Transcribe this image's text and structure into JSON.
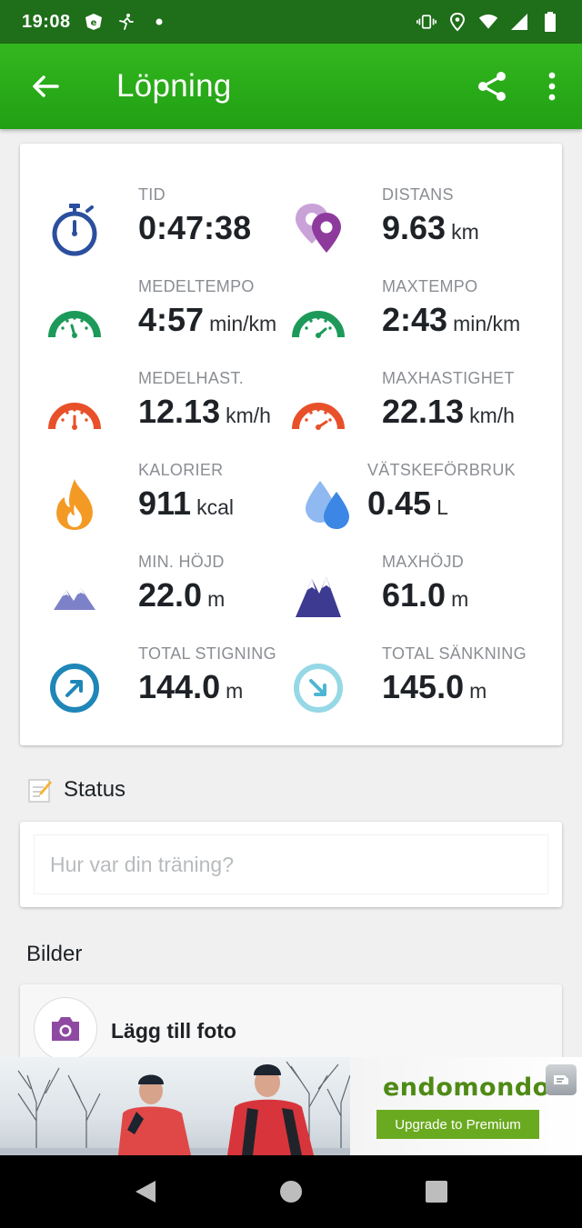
{
  "status_bar": {
    "time": "19:08"
  },
  "app_bar": {
    "title": "Löpning",
    "back_icon": "arrow-left-icon",
    "share_icon": "share-icon",
    "menu_icon": "more-vert-icon"
  },
  "stats": [
    {
      "label": "TID",
      "value": "0:47:38",
      "unit": "",
      "icon": "stopwatch-icon"
    },
    {
      "label": "DISTANS",
      "value": "9.63",
      "unit": "km",
      "icon": "map-pins-icon"
    },
    {
      "label": "MEDELTEMPO",
      "value": "4:57",
      "unit": "min/km",
      "icon": "speedometer-green-icon"
    },
    {
      "label": "MAXTEMPO",
      "value": "2:43",
      "unit": "min/km",
      "icon": "speedometer-green-max-icon"
    },
    {
      "label": "MEDELHAST.",
      "value": "12.13",
      "unit": "km/h",
      "icon": "speedometer-red-icon"
    },
    {
      "label": "MAXHASTIGHET",
      "value": "22.13",
      "unit": "km/h",
      "icon": "speedometer-red-max-icon"
    },
    {
      "label": "KALORIER",
      "value": "911",
      "unit": "kcal",
      "icon": "flame-icon"
    },
    {
      "label": "VÄTSKEFÖRBRUK",
      "value": "0.45",
      "unit": "L",
      "icon": "water-drops-icon"
    },
    {
      "label": "MIN. HÖJD",
      "value": "22.0",
      "unit": "m",
      "icon": "mountain-low-icon"
    },
    {
      "label": "MAXHÖJD",
      "value": "61.0",
      "unit": "m",
      "icon": "mountain-high-icon"
    },
    {
      "label": "TOTAL STIGNING",
      "value": "144.0",
      "unit": "m",
      "icon": "ascent-icon"
    },
    {
      "label": "TOTAL SÄNKNING",
      "value": "145.0",
      "unit": "m",
      "icon": "descent-icon"
    }
  ],
  "status_section": {
    "heading": "Status",
    "placeholder": "Hur var din träning?"
  },
  "photos_section": {
    "heading": "Bilder",
    "add_label": "Lägg till foto"
  },
  "ad": {
    "logo": "endomondo",
    "button": "Upgrade to Premium"
  },
  "colors": {
    "app_bar": "#2aa81a",
    "status_bar": "#1f6e1a",
    "green_icon": "#1f9a5a",
    "red_icon": "#e8502a",
    "purple_icon": "#9b59b6",
    "blue_icon": "#2b5aa8"
  }
}
